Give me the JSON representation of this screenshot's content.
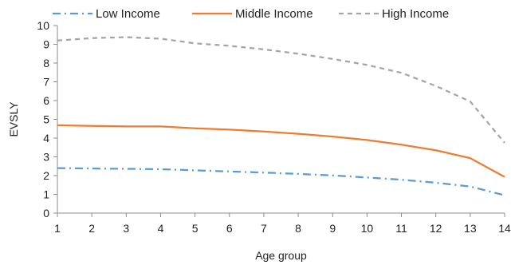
{
  "chart_data": {
    "type": "line",
    "title": "",
    "xlabel": "Age group",
    "ylabel": "EVSLY",
    "x": [
      1,
      2,
      3,
      4,
      5,
      6,
      7,
      8,
      9,
      10,
      11,
      12,
      13,
      14
    ],
    "xlim": [
      1,
      14
    ],
    "ylim": [
      0,
      10
    ],
    "x_ticks": [
      1,
      2,
      3,
      4,
      5,
      6,
      7,
      8,
      9,
      10,
      11,
      12,
      13,
      14
    ],
    "y_ticks": [
      0,
      1,
      2,
      3,
      4,
      5,
      6,
      7,
      8,
      9,
      10
    ],
    "grid": false,
    "legend_position": "top",
    "series": [
      {
        "name": "Low Income",
        "color": "#5B9BD5",
        "dash": "dash-dot",
        "values": [
          2.4,
          2.38,
          2.36,
          2.34,
          2.28,
          2.22,
          2.16,
          2.09,
          2.01,
          1.9,
          1.78,
          1.62,
          1.42,
          0.95
        ]
      },
      {
        "name": "Middle Income",
        "color": "#ED7D31",
        "dash": "solid",
        "values": [
          4.68,
          4.65,
          4.62,
          4.62,
          4.52,
          4.45,
          4.35,
          4.23,
          4.08,
          3.9,
          3.65,
          3.35,
          2.93,
          1.93
        ]
      },
      {
        "name": "High Income",
        "color": "#A5A5A5",
        "dash": "dashed",
        "values": [
          9.2,
          9.33,
          9.38,
          9.3,
          9.05,
          8.92,
          8.73,
          8.5,
          8.22,
          7.9,
          7.48,
          6.78,
          5.95,
          3.75
        ]
      }
    ]
  }
}
